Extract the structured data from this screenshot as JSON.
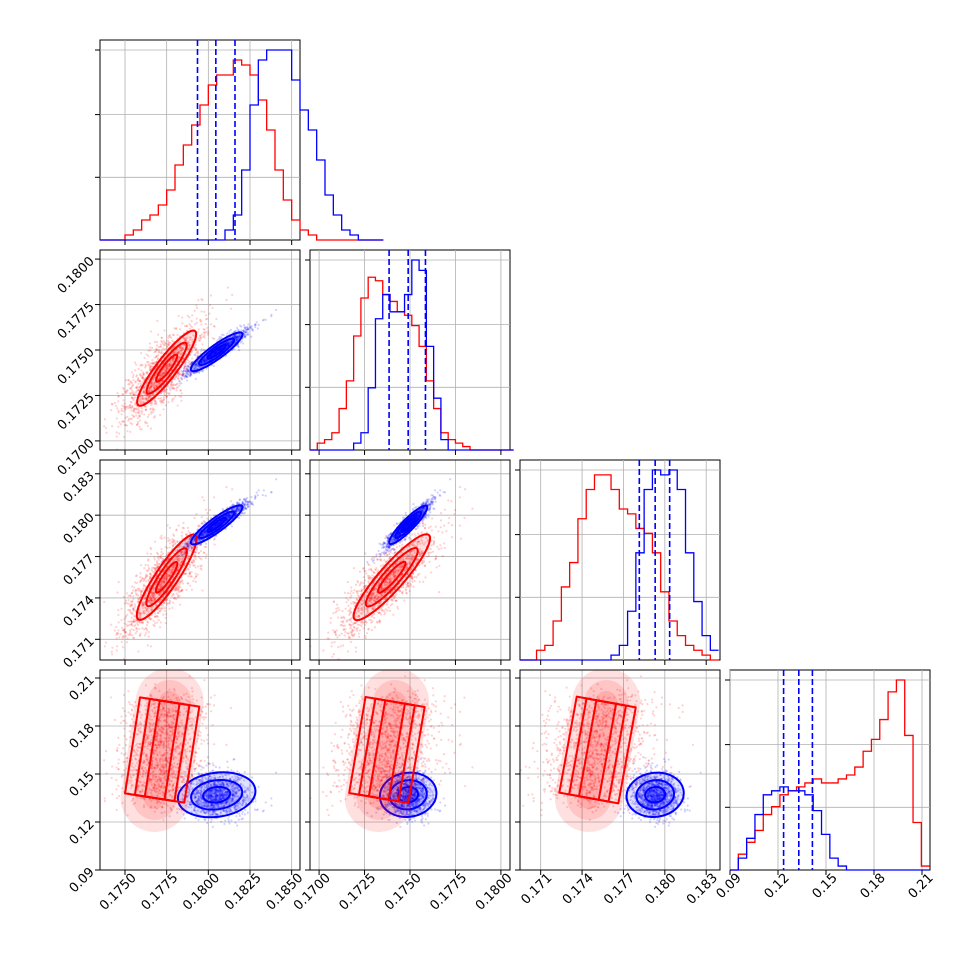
{
  "chart_data": {
    "type": "corner",
    "colors": {
      "red": "#ff0000",
      "blue": "#0000ff",
      "grid": "#b0b0b0"
    },
    "dims": [
      {
        "range": [
          0.1735,
          0.1855
        ],
        "ticks": [
          0.175,
          0.1775,
          0.18,
          0.1825,
          0.185
        ],
        "tick_labels": [
          "0.1750",
          "0.1775",
          "0.1800",
          "0.1825",
          "0.1850"
        ]
      },
      {
        "range": [
          0.1695,
          0.1805
        ],
        "ticks": [
          0.17,
          0.1725,
          0.175,
          0.1775,
          0.18
        ],
        "tick_labels": [
          "0.1700",
          "0.1725",
          "0.1750",
          "0.1775",
          "0.1800"
        ]
      },
      {
        "range": [
          0.1695,
          0.184
        ],
        "ticks": [
          0.171,
          0.174,
          0.177,
          0.18,
          0.183
        ],
        "tick_labels": [
          "0.171",
          "0.174",
          "0.177",
          "0.180",
          "0.183"
        ]
      },
      {
        "range": [
          0.09,
          0.215
        ],
        "ticks": [
          0.09,
          0.12,
          0.15,
          0.18,
          0.21
        ],
        "tick_labels": [
          "0.09",
          "0.12",
          "0.15",
          "0.18",
          "0.21"
        ]
      }
    ],
    "quantiles_blue": [
      [
        0.17935,
        0.18045,
        0.1816
      ],
      [
        0.17385,
        0.1749,
        0.17585
      ],
      [
        0.17815,
        0.1793,
        0.18035
      ],
      [
        0.1235,
        0.133,
        0.1415
      ]
    ],
    "marginals": [
      {
        "red": {
          "start": 0.1735,
          "width": 0.0005,
          "counts": [
            0,
            0,
            0,
            1,
            2,
            4,
            5,
            7,
            10,
            15,
            19,
            23,
            27,
            31,
            33,
            33,
            36,
            35,
            33,
            28,
            22,
            14,
            8,
            4,
            2,
            1,
            0,
            0,
            0,
            0,
            0,
            0,
            0,
            0
          ]
        },
        "blue": {
          "start": 0.1735,
          "width": 0.0005,
          "counts": [
            0,
            0,
            0,
            0,
            0,
            0,
            0,
            0,
            0,
            0,
            0,
            0,
            0,
            0,
            0,
            2,
            5,
            14,
            27,
            36,
            38,
            38,
            38,
            32,
            26,
            22,
            16,
            9,
            5,
            2,
            1,
            0,
            0,
            0
          ]
        }
      },
      {
        "red": {
          "start": 0.1695,
          "width": 0.0004,
          "counts": [
            0,
            2,
            3,
            5,
            12,
            20,
            33,
            44,
            50,
            49,
            45,
            43,
            40,
            39,
            36,
            30,
            20,
            12,
            5,
            3,
            2,
            1,
            0,
            0,
            0,
            0,
            0,
            0
          ]
        },
        "blue": {
          "start": 0.1695,
          "width": 0.0004,
          "counts": [
            0,
            0,
            0,
            0,
            0,
            0,
            2,
            5,
            18,
            38,
            45,
            40,
            40,
            45,
            55,
            52,
            30,
            15,
            3,
            0,
            0,
            0,
            0,
            0,
            0,
            0,
            0,
            0
          ]
        }
      },
      {
        "red": {
          "start": 0.1695,
          "width": 0.0006,
          "counts": [
            0,
            0,
            2,
            3,
            8,
            15,
            20,
            29,
            35,
            38,
            38,
            35,
            31,
            30,
            27,
            26,
            22,
            14,
            8,
            5,
            3,
            2,
            1,
            0
          ]
        },
        "blue": {
          "start": 0.1695,
          "width": 0.0006,
          "counts": [
            0,
            0,
            0,
            0,
            0,
            0,
            0,
            0,
            0,
            0,
            0,
            1,
            3,
            10,
            22,
            35,
            39,
            38,
            39,
            35,
            22,
            12,
            5,
            2
          ]
        }
      },
      {
        "red": {
          "start": 0.09,
          "width": 0.0052,
          "counts": [
            0,
            4,
            7,
            10,
            14,
            16,
            19,
            20,
            21,
            22,
            23,
            22,
            22,
            23,
            24,
            26,
            30,
            33,
            38,
            45,
            48,
            34,
            12,
            1
          ]
        },
        "blue": {
          "start": 0.09,
          "width": 0.0052,
          "counts": [
            0,
            3,
            8,
            14,
            19,
            20,
            21,
            20,
            20,
            19,
            15,
            9,
            3,
            1,
            0,
            0,
            0,
            0,
            0,
            0,
            0,
            0,
            0,
            0
          ]
        }
      }
    ]
  }
}
